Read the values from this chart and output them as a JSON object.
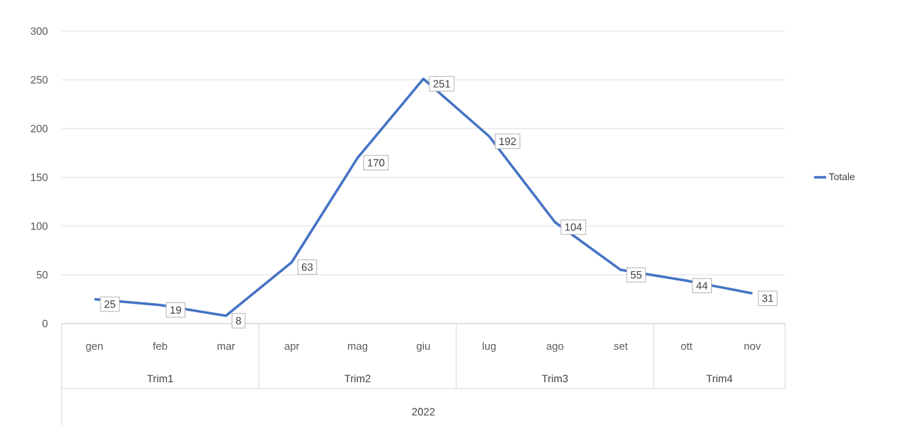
{
  "chart_data": {
    "type": "line",
    "categories": [
      "gen",
      "feb",
      "mar",
      "apr",
      "mag",
      "giu",
      "lug",
      "ago",
      "set",
      "ott",
      "nov"
    ],
    "series": [
      {
        "name": "Totale",
        "color": "#4472c4",
        "values": [
          25,
          19,
          8,
          63,
          170,
          251,
          192,
          104,
          55,
          44,
          31
        ]
      }
    ],
    "ylim": [
      0,
      300
    ],
    "yticks": [
      0,
      50,
      100,
      150,
      200,
      250,
      300
    ],
    "grid": "y",
    "legend": "right",
    "data_labels": true,
    "marker": "none",
    "line_style": "solid",
    "annotations": [
      "Trim1",
      "Trim2",
      "Trim3",
      "Trim4",
      "2022"
    ]
  }
}
